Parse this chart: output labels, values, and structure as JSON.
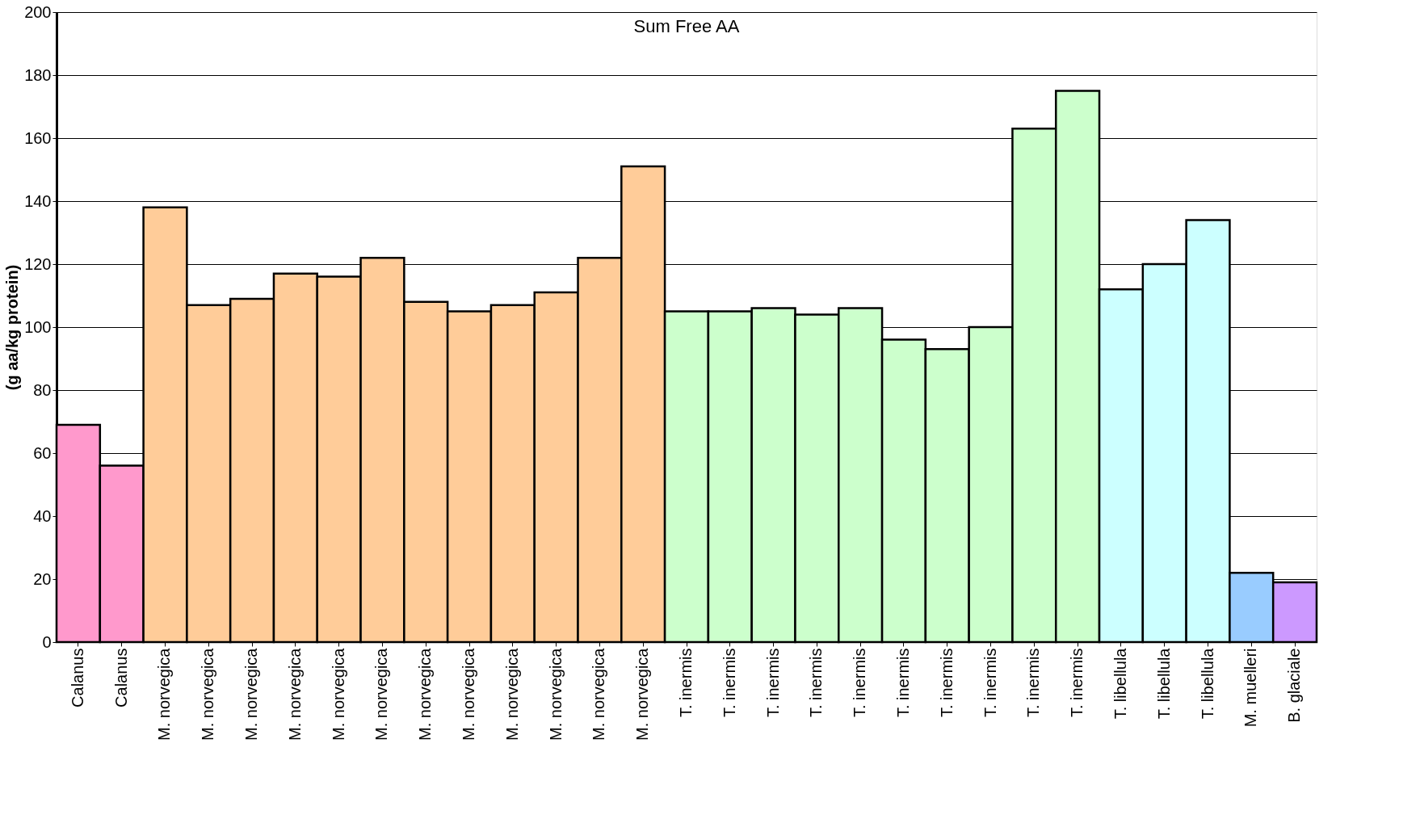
{
  "chart_data": {
    "type": "bar",
    "title": "Sum Free AA",
    "ylabel": "(g aa/kg protein)",
    "categories": [
      "Calanus",
      "Calanus",
      "M. norvegica",
      "M. norvegica",
      "M. norvegica",
      "M. norvegica",
      "M. norvegica",
      "M. norvegica",
      "M. norvegica",
      "M. norvegica",
      "M. norvegica",
      "M. norvegica",
      "M. norvegica",
      "M. norvegica",
      "T. inermis",
      "T. inermis",
      "T. inermis",
      "T. inermis",
      "T. inermis",
      "T. inermis",
      "T. inermis",
      "T. inermis",
      "T. inermis",
      "T. inermis",
      "T. libellula",
      "T. libellula",
      "T. libellula",
      "M. muelleri",
      "B. glaciale"
    ],
    "values": [
      69,
      56,
      138,
      107,
      109,
      117,
      116,
      122,
      108,
      105,
      107,
      111,
      122,
      151,
      105,
      105,
      106,
      104,
      106,
      96,
      93,
      100,
      163,
      175,
      112,
      120,
      134,
      22,
      19
    ],
    "colors": [
      "#ff99cc",
      "#ff99cc",
      "#ffcc99",
      "#ffcc99",
      "#ffcc99",
      "#ffcc99",
      "#ffcc99",
      "#ffcc99",
      "#ffcc99",
      "#ffcc99",
      "#ffcc99",
      "#ffcc99",
      "#ffcc99",
      "#ffcc99",
      "#ccffcc",
      "#ccffcc",
      "#ccffcc",
      "#ccffcc",
      "#ccffcc",
      "#ccffcc",
      "#ccffcc",
      "#ccffcc",
      "#ccffcc",
      "#ccffcc",
      "#ccffff",
      "#ccffff",
      "#ccffff",
      "#99ccff",
      "#cc99ff"
    ],
    "ylim": [
      0,
      200
    ],
    "yticks": [
      0,
      20,
      40,
      60,
      80,
      100,
      120,
      140,
      160,
      180,
      200
    ],
    "grid": "y"
  }
}
